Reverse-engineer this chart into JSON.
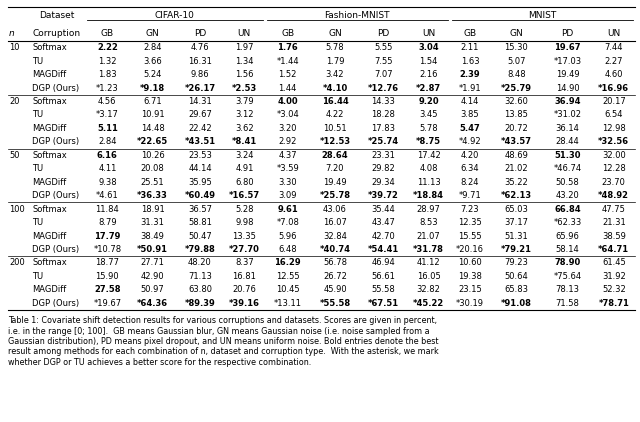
{
  "caption": "Table 1: Covariate shift detection results for various corruptions and datasets. Scores are given in percent,\ni.e. in the range [0; 100].  GB means Gaussian blur, GN means Gaussian noise (i.e. noise sampled from a\nGaussian distribution), PD means pixel dropout, and UN means uniform noise. Bold entries denote the best\nresult among methods for each combination of n, dataset and corruption type.  With the asterisk, we mark\nwhether DGP or TU achieves a better score for the respective combination.",
  "bold_cells": {
    "10-Softmax": [
      0,
      4,
      7,
      10
    ],
    "10-TU": [],
    "10-MAGDiff": [
      8
    ],
    "10-DGP (Ours)": [
      1,
      2,
      3,
      5,
      6,
      7,
      9,
      11
    ],
    "20-Softmax": [
      4,
      5,
      7,
      10
    ],
    "20-TU": [],
    "20-MAGDiff": [
      0,
      8
    ],
    "20-DGP (Ours)": [
      1,
      2,
      3,
      5,
      6,
      7,
      9,
      11
    ],
    "50-Softmax": [
      0,
      5,
      10
    ],
    "50-TU": [],
    "50-MAGDiff": [],
    "50-DGP (Ours)": [
      1,
      2,
      3,
      5,
      6,
      7,
      9,
      11
    ],
    "100-Softmax": [
      4,
      10
    ],
    "100-TU": [],
    "100-MAGDiff": [
      0
    ],
    "100-DGP (Ours)": [
      1,
      2,
      3,
      5,
      6,
      7,
      9,
      11
    ],
    "200-Softmax": [
      4,
      10
    ],
    "200-TU": [],
    "200-MAGDiff": [
      0
    ],
    "200-DGP (Ours)": [
      1,
      2,
      3,
      5,
      6,
      7,
      9,
      11
    ]
  },
  "row_groups": [
    {
      "n": "10",
      "rows": [
        {
          "method": "Softmax",
          "vals": [
            "2.22",
            "2.84",
            "4.76",
            "1.97",
            "1.76",
            "5.78",
            "5.55",
            "3.04",
            "2.11",
            "15.30",
            "19.67",
            "7.44"
          ]
        },
        {
          "method": "TU",
          "vals": [
            "1.32",
            "3.66",
            "16.31",
            "1.34",
            "*1.44",
            "1.79",
            "7.55",
            "1.54",
            "1.63",
            "5.07",
            "*17.03",
            "2.27"
          ]
        },
        {
          "method": "MAGDiff",
          "vals": [
            "1.83",
            "5.24",
            "9.86",
            "1.56",
            "1.52",
            "3.42",
            "7.07",
            "2.16",
            "2.39",
            "8.48",
            "19.49",
            "4.60"
          ]
        },
        {
          "method": "DGP (Ours)",
          "vals": [
            "*1.23",
            "*9.18",
            "*26.17",
            "*2.53",
            "1.44",
            "*4.10",
            "*12.76",
            "*2.87",
            "*1.91",
            "*25.79",
            "14.90",
            "*16.96"
          ]
        }
      ]
    },
    {
      "n": "20",
      "rows": [
        {
          "method": "Softmax",
          "vals": [
            "4.56",
            "6.71",
            "14.31",
            "3.79",
            "4.00",
            "16.44",
            "14.33",
            "9.20",
            "4.14",
            "32.60",
            "36.94",
            "20.17"
          ]
        },
        {
          "method": "TU",
          "vals": [
            "*3.17",
            "10.91",
            "29.67",
            "3.12",
            "*3.04",
            "4.22",
            "18.28",
            "3.45",
            "3.85",
            "13.85",
            "*31.02",
            "6.54"
          ]
        },
        {
          "method": "MAGDiff",
          "vals": [
            "5.11",
            "14.48",
            "22.42",
            "3.62",
            "3.20",
            "10.51",
            "17.83",
            "5.78",
            "5.47",
            "20.72",
            "36.14",
            "12.98"
          ]
        },
        {
          "method": "DGP (Ours)",
          "vals": [
            "2.84",
            "*22.65",
            "*43.51",
            "*8.41",
            "2.92",
            "*12.53",
            "*25.74",
            "*8.75",
            "*4.92",
            "*43.57",
            "28.44",
            "*32.56"
          ]
        }
      ]
    },
    {
      "n": "50",
      "rows": [
        {
          "method": "Softmax",
          "vals": [
            "6.16",
            "10.26",
            "23.53",
            "3.24",
            "4.37",
            "28.64",
            "23.31",
            "17.42",
            "4.20",
            "48.69",
            "51.30",
            "32.00"
          ]
        },
        {
          "method": "TU",
          "vals": [
            "4.11",
            "20.08",
            "44.14",
            "4.91",
            "*3.59",
            "7.20",
            "29.82",
            "4.08",
            "6.34",
            "21.02",
            "*46.74",
            "12.28"
          ]
        },
        {
          "method": "MAGDiff",
          "vals": [
            "9.38",
            "25.51",
            "35.95",
            "6.80",
            "3.30",
            "19.49",
            "29.34",
            "11.13",
            "8.24",
            "35.22",
            "50.58",
            "23.70"
          ]
        },
        {
          "method": "DGP (Ours)",
          "vals": [
            "*4.61",
            "*36.33",
            "*60.49",
            "*16.57",
            "3.09",
            "*25.78",
            "*39.72",
            "*18.84",
            "*9.71",
            "*62.13",
            "43.20",
            "*48.92"
          ]
        }
      ]
    },
    {
      "n": "100",
      "rows": [
        {
          "method": "Softmax",
          "vals": [
            "11.84",
            "18.91",
            "36.57",
            "5.28",
            "9.61",
            "43.06",
            "35.44",
            "28.97",
            "7.23",
            "65.03",
            "66.84",
            "47.75"
          ]
        },
        {
          "method": "TU",
          "vals": [
            "8.79",
            "31.31",
            "58.81",
            "9.98",
            "*7.08",
            "16.07",
            "43.47",
            "8.53",
            "12.35",
            "37.17",
            "*62.33",
            "21.31"
          ]
        },
        {
          "method": "MAGDiff",
          "vals": [
            "17.79",
            "38.49",
            "50.47",
            "13.35",
            "5.96",
            "32.84",
            "42.70",
            "21.07",
            "15.55",
            "51.31",
            "65.96",
            "38.59"
          ]
        },
        {
          "method": "DGP (Ours)",
          "vals": [
            "*10.78",
            "*50.91",
            "*79.88",
            "*27.70",
            "6.48",
            "*40.74",
            "*54.41",
            "*31.78",
            "*20.16",
            "*79.21",
            "58.14",
            "*64.71"
          ]
        }
      ]
    },
    {
      "n": "200",
      "rows": [
        {
          "method": "Softmax",
          "vals": [
            "18.77",
            "27.71",
            "48.20",
            "8.37",
            "16.29",
            "56.78",
            "46.94",
            "41.12",
            "10.60",
            "79.23",
            "78.90",
            "61.45"
          ]
        },
        {
          "method": "TU",
          "vals": [
            "15.90",
            "42.90",
            "71.13",
            "16.81",
            "12.55",
            "26.72",
            "56.61",
            "16.05",
            "19.38",
            "50.64",
            "*75.64",
            "31.92"
          ]
        },
        {
          "method": "MAGDiff",
          "vals": [
            "27.58",
            "50.97",
            "63.80",
            "20.76",
            "10.45",
            "45.90",
            "55.58",
            "32.82",
            "23.15",
            "65.83",
            "78.13",
            "52.32"
          ]
        },
        {
          "method": "DGP (Ours)",
          "vals": [
            "*19.67",
            "*64.36",
            "*89.39",
            "*39.16",
            "*13.11",
            "*55.58",
            "*67.51",
            "*45.22",
            "*30.19",
            "*91.08",
            "71.58",
            "*78.71"
          ]
        }
      ]
    }
  ]
}
